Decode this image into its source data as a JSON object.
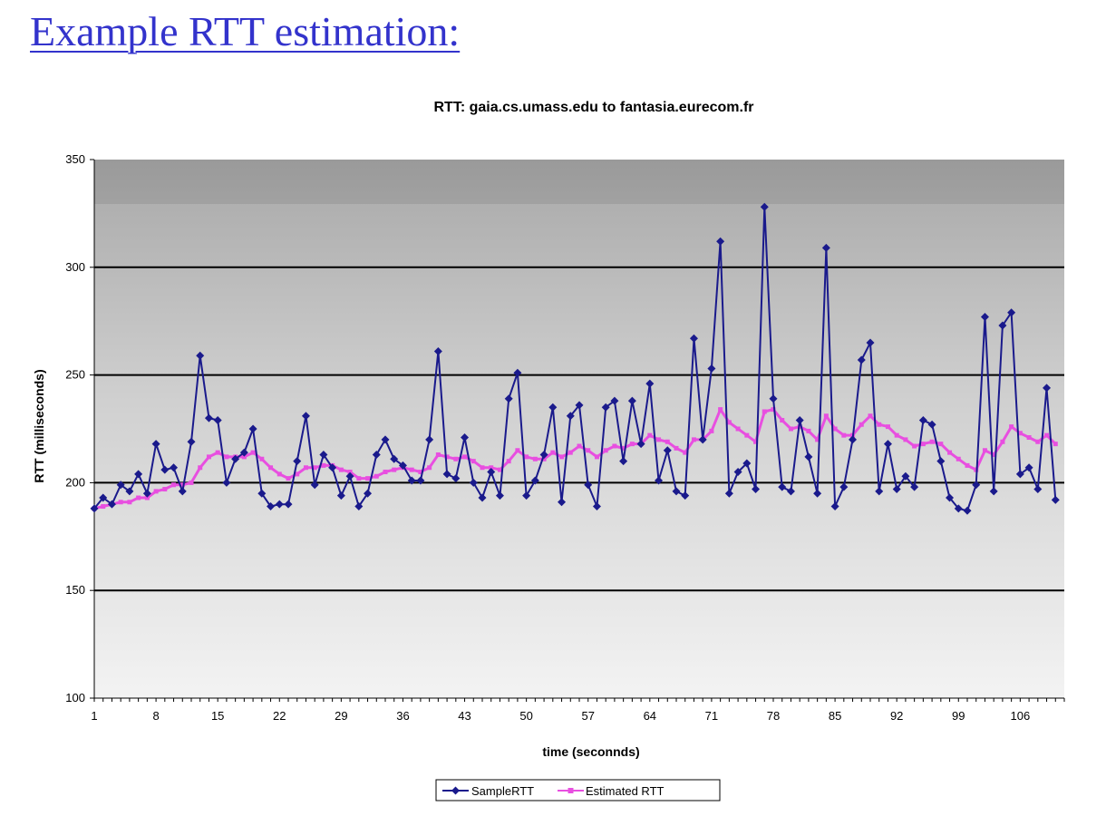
{
  "slide": {
    "title": "Example RTT estimation:"
  },
  "colors": {
    "title": "#3333cc",
    "sample": "#1a1a8c",
    "estimated": "#e84fe0",
    "grid": "#000000"
  },
  "chart_data": {
    "type": "line",
    "title": "RTT: gaia.cs.umass.edu to fantasia.eurecom.fr",
    "xlabel": "time (seconnds)",
    "ylabel": "RTT (milliseconds)",
    "ylim": [
      100,
      350
    ],
    "yticks": [
      100,
      150,
      200,
      250,
      300,
      350
    ],
    "xlim": [
      1,
      111
    ],
    "xticks": [
      1,
      8,
      15,
      22,
      29,
      36,
      43,
      50,
      57,
      64,
      71,
      78,
      85,
      92,
      99,
      106
    ],
    "grid": true,
    "legend": "bottom-center",
    "series": [
      {
        "name": "SampleRTT",
        "marker": "diamond",
        "values": [
          188,
          193,
          190,
          199,
          196,
          204,
          195,
          218,
          206,
          207,
          196,
          219,
          259,
          230,
          229,
          200,
          211,
          214,
          225,
          195,
          189,
          190,
          190,
          210,
          231,
          199,
          213,
          207,
          194,
          203,
          189,
          195,
          213,
          220,
          211,
          208,
          201,
          201,
          220,
          261,
          204,
          202,
          221,
          200,
          193,
          205,
          194,
          239,
          251,
          194,
          201,
          213,
          235,
          191,
          231,
          236,
          199,
          189,
          235,
          238,
          210,
          238,
          218,
          246,
          201,
          215,
          196,
          194,
          267,
          220,
          253,
          312,
          195,
          205,
          209,
          197,
          328,
          239,
          198,
          196,
          229,
          212,
          195,
          309,
          189,
          198,
          220,
          257,
          265,
          196,
          218,
          197,
          203,
          198,
          229,
          227,
          210,
          193,
          188,
          187,
          199,
          277,
          196,
          273,
          279,
          204,
          207,
          197,
          244,
          192
        ]
      },
      {
        "name": "Estimated RTT",
        "marker": "square",
        "values": [
          188,
          189,
          190,
          191,
          191,
          193,
          193,
          196,
          197,
          199,
          199,
          200,
          207,
          212,
          214,
          212,
          212,
          212,
          214,
          211,
          207,
          204,
          202,
          204,
          207,
          207,
          208,
          208,
          206,
          205,
          202,
          202,
          203,
          205,
          206,
          207,
          206,
          205,
          207,
          213,
          212,
          211,
          212,
          210,
          207,
          207,
          206,
          210,
          215,
          212,
          211,
          211,
          214,
          212,
          214,
          217,
          215,
          212,
          215,
          217,
          216,
          218,
          218,
          222,
          220,
          219,
          216,
          214,
          220,
          220,
          224,
          234,
          228,
          225,
          222,
          219,
          233,
          234,
          229,
          225,
          226,
          224,
          220,
          231,
          225,
          222,
          222,
          227,
          231,
          227,
          226,
          222,
          220,
          217,
          218,
          219,
          218,
          214,
          211,
          208,
          206,
          215,
          213,
          219,
          226,
          223,
          221,
          219,
          222,
          218
        ]
      }
    ]
  }
}
